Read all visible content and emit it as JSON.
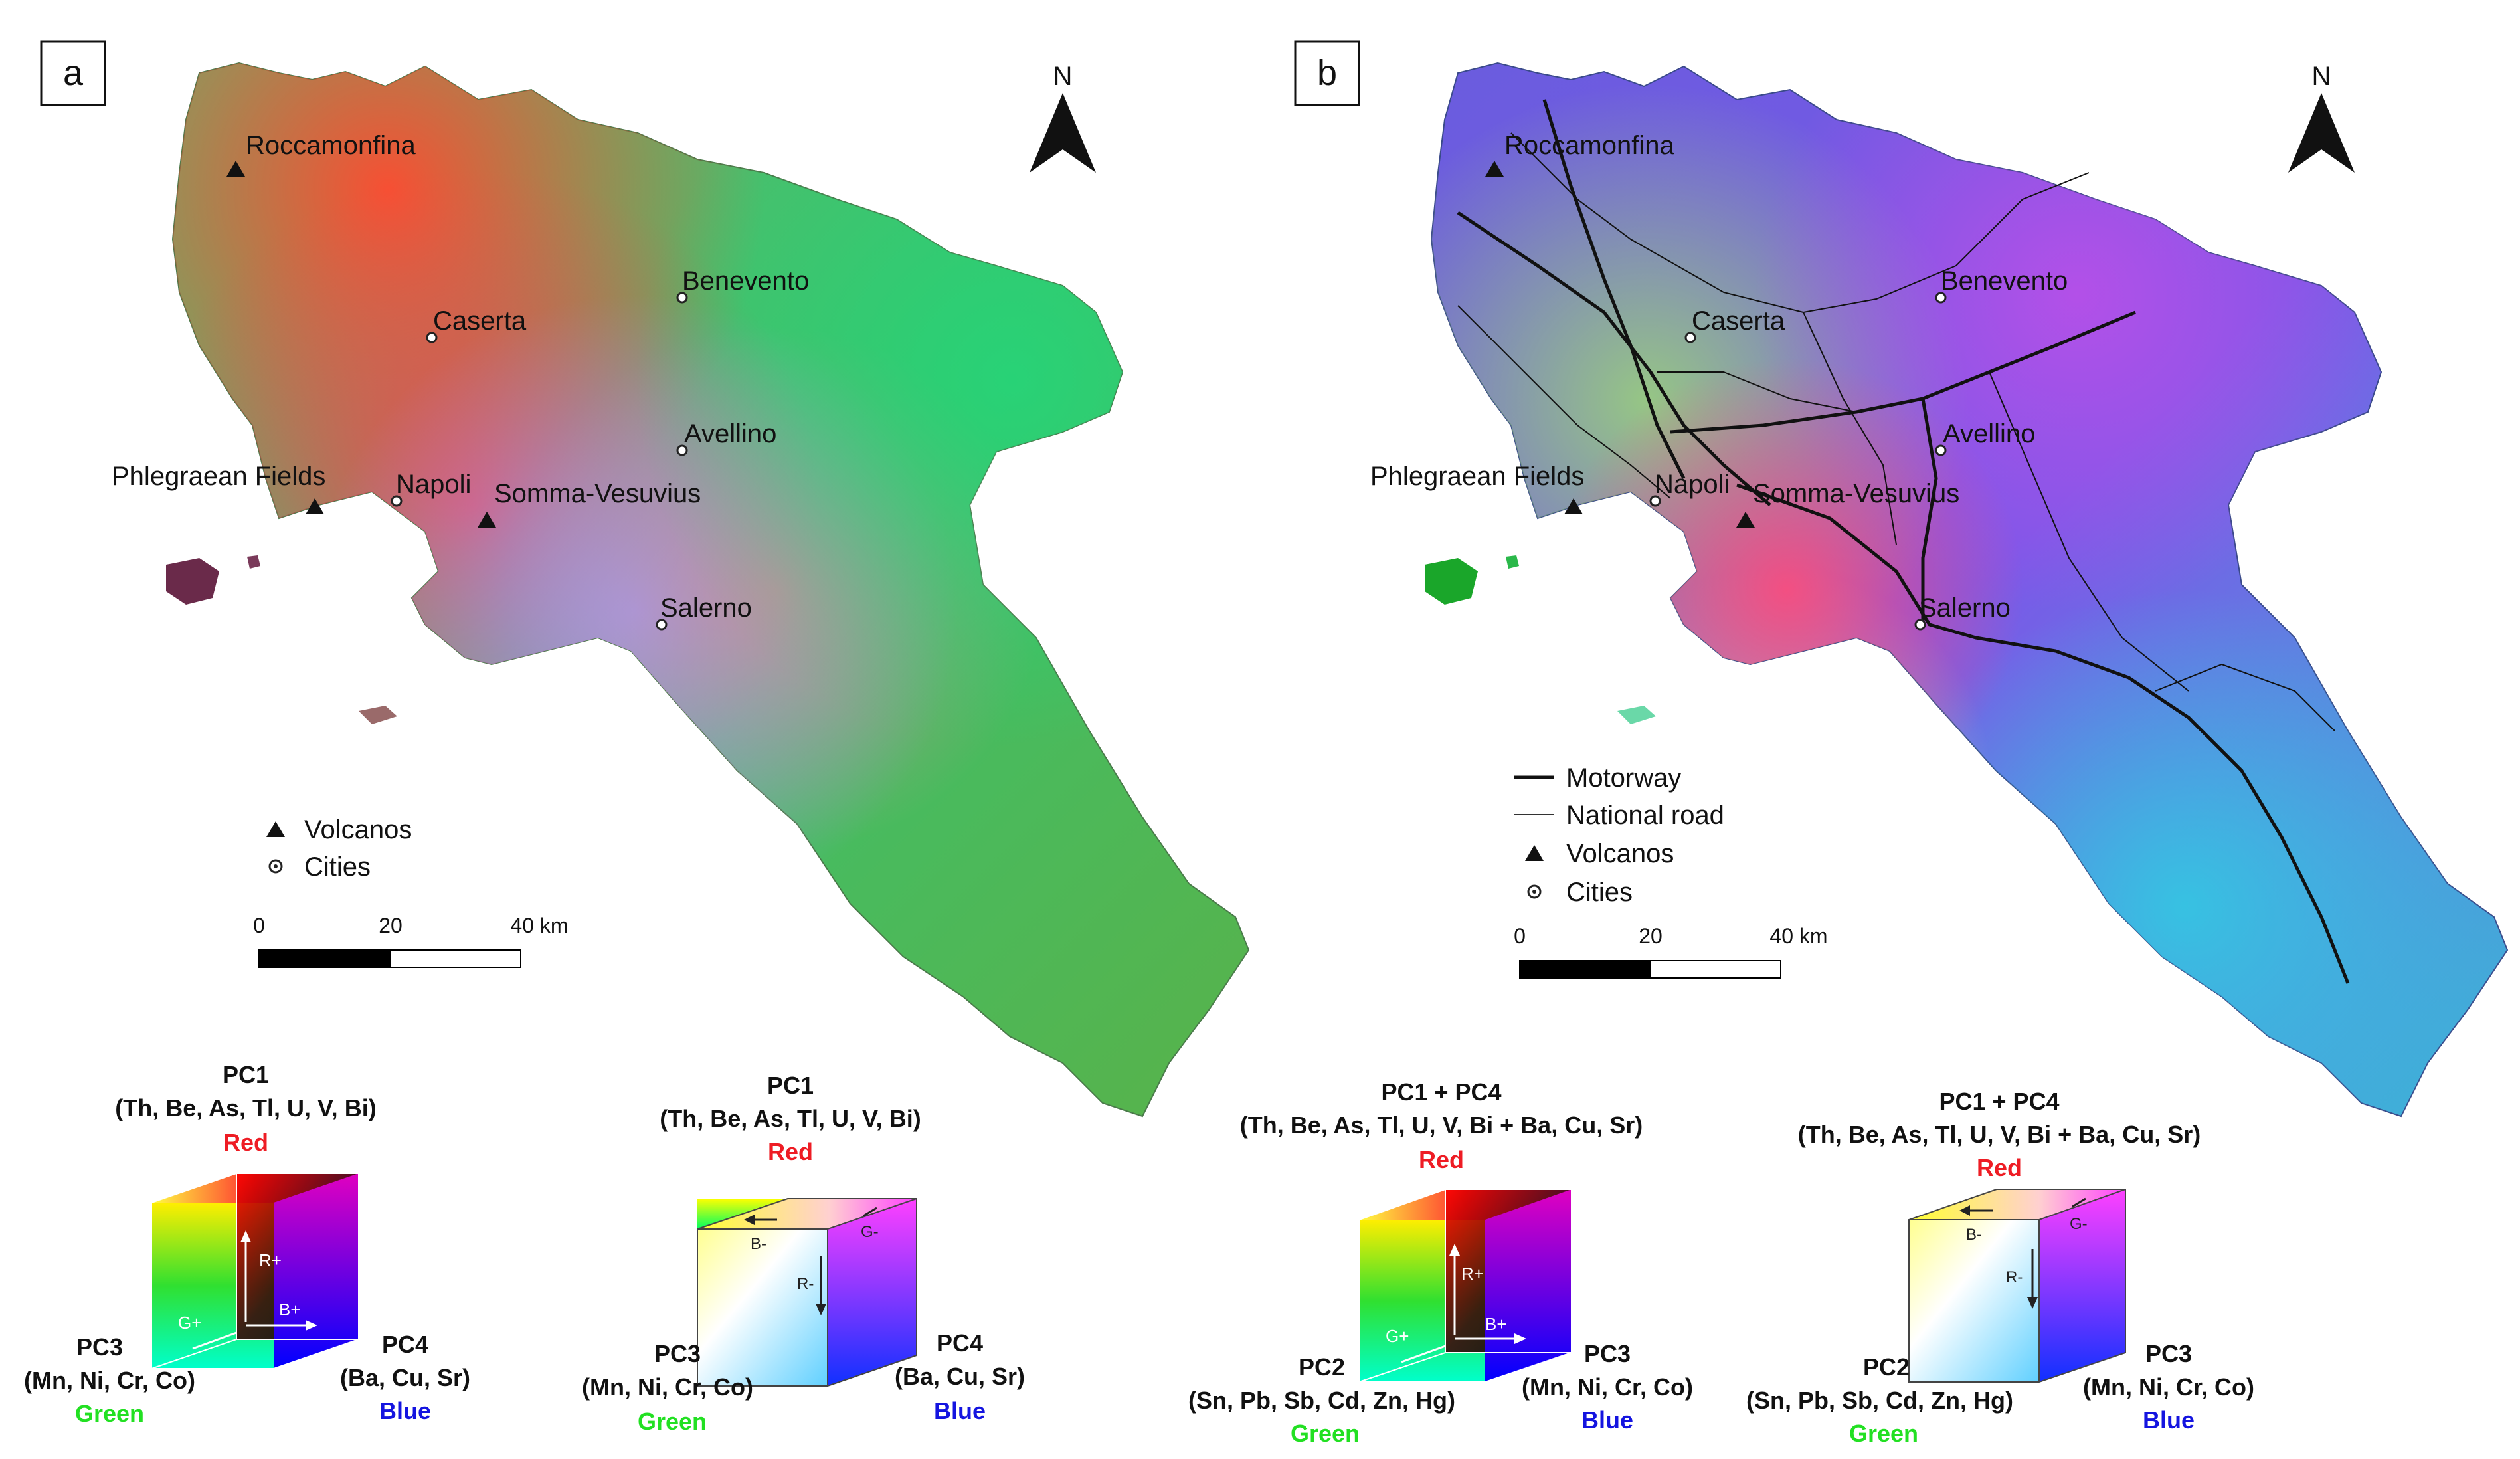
{
  "panels": [
    {
      "id": "a",
      "letter": "a",
      "places": {
        "roccamonfina": "Roccamonfina",
        "caserta": "Caserta",
        "benevento": "Benevento",
        "avellino": "Avellino",
        "phlegraean": "Phlegraean Fields",
        "napoli": "Napoli",
        "vesuvius": "Somma-Vesuvius",
        "salerno": "Salerno"
      },
      "legend": [
        "Volcanos",
        "Cities"
      ],
      "scale": {
        "ticks": [
          "0",
          "20",
          "40 km"
        ]
      },
      "north": "N"
    },
    {
      "id": "b",
      "letter": "b",
      "places": {
        "roccamonfina": "Roccamonfina",
        "caserta": "Caserta",
        "benevento": "Benevento",
        "avellino": "Avellino",
        "phlegraean": "Phlegraean Fields",
        "napoli": "Napoli",
        "vesuvius": "Somma-Vesuvius",
        "salerno": "Salerno"
      },
      "legend": [
        "Motorway",
        "National road",
        "Volcanos",
        "Cities"
      ],
      "scale": {
        "ticks": [
          "0",
          "20",
          "40 km"
        ]
      },
      "north": "N"
    }
  ],
  "cubes": [
    {
      "top_name": "PC1",
      "top_elements": "(Th, Be, As, Tl, U, V, Bi)",
      "top_color": "Red",
      "left_name": "PC3",
      "left_elements": "(Mn, Ni, Cr, Co)",
      "left_color": "Green",
      "right_name": "PC4",
      "right_elements": "(Ba, Cu, Sr)",
      "right_color": "Blue",
      "arrows": [
        "R+",
        "G+",
        "B+"
      ]
    },
    {
      "top_name": "PC1",
      "top_elements": "(Th, Be, As, Tl, U, V, Bi)",
      "top_color": "Red",
      "left_name": "PC3",
      "left_elements": "(Mn, Ni, Cr, Co)",
      "left_color": "Green",
      "right_name": "PC4",
      "right_elements": "(Ba, Cu, Sr)",
      "right_color": "Blue",
      "arrows": [
        "R-",
        "G-",
        "B-"
      ]
    },
    {
      "top_name": "PC1 + PC4",
      "top_elements": "(Th, Be, As, Tl, U, V, Bi + Ba, Cu, Sr)",
      "top_color": "Red",
      "left_name": "PC2",
      "left_elements": "(Sn, Pb, Sb, Cd, Zn, Hg)",
      "left_color": "Green",
      "right_name": "PC3",
      "right_elements": "(Mn, Ni, Cr, Co)",
      "right_color": "Blue",
      "arrows": [
        "R+",
        "G+",
        "B+"
      ]
    },
    {
      "top_name": "PC1 + PC4",
      "top_elements": "(Th, Be, As, Tl, U, V, Bi + Ba, Cu, Sr)",
      "top_color": "Red",
      "left_name": "PC2",
      "left_elements": "(Sn, Pb, Sb, Cd, Zn, Hg)",
      "left_color": "Green",
      "right_name": "PC3",
      "right_elements": "(Mn, Ni, Cr, Co)",
      "right_color": "Blue",
      "arrows": [
        "R-",
        "G-",
        "B-"
      ]
    }
  ],
  "colors": {
    "red": "#ee1c24",
    "green": "#22e022",
    "blue": "#1414e0"
  }
}
